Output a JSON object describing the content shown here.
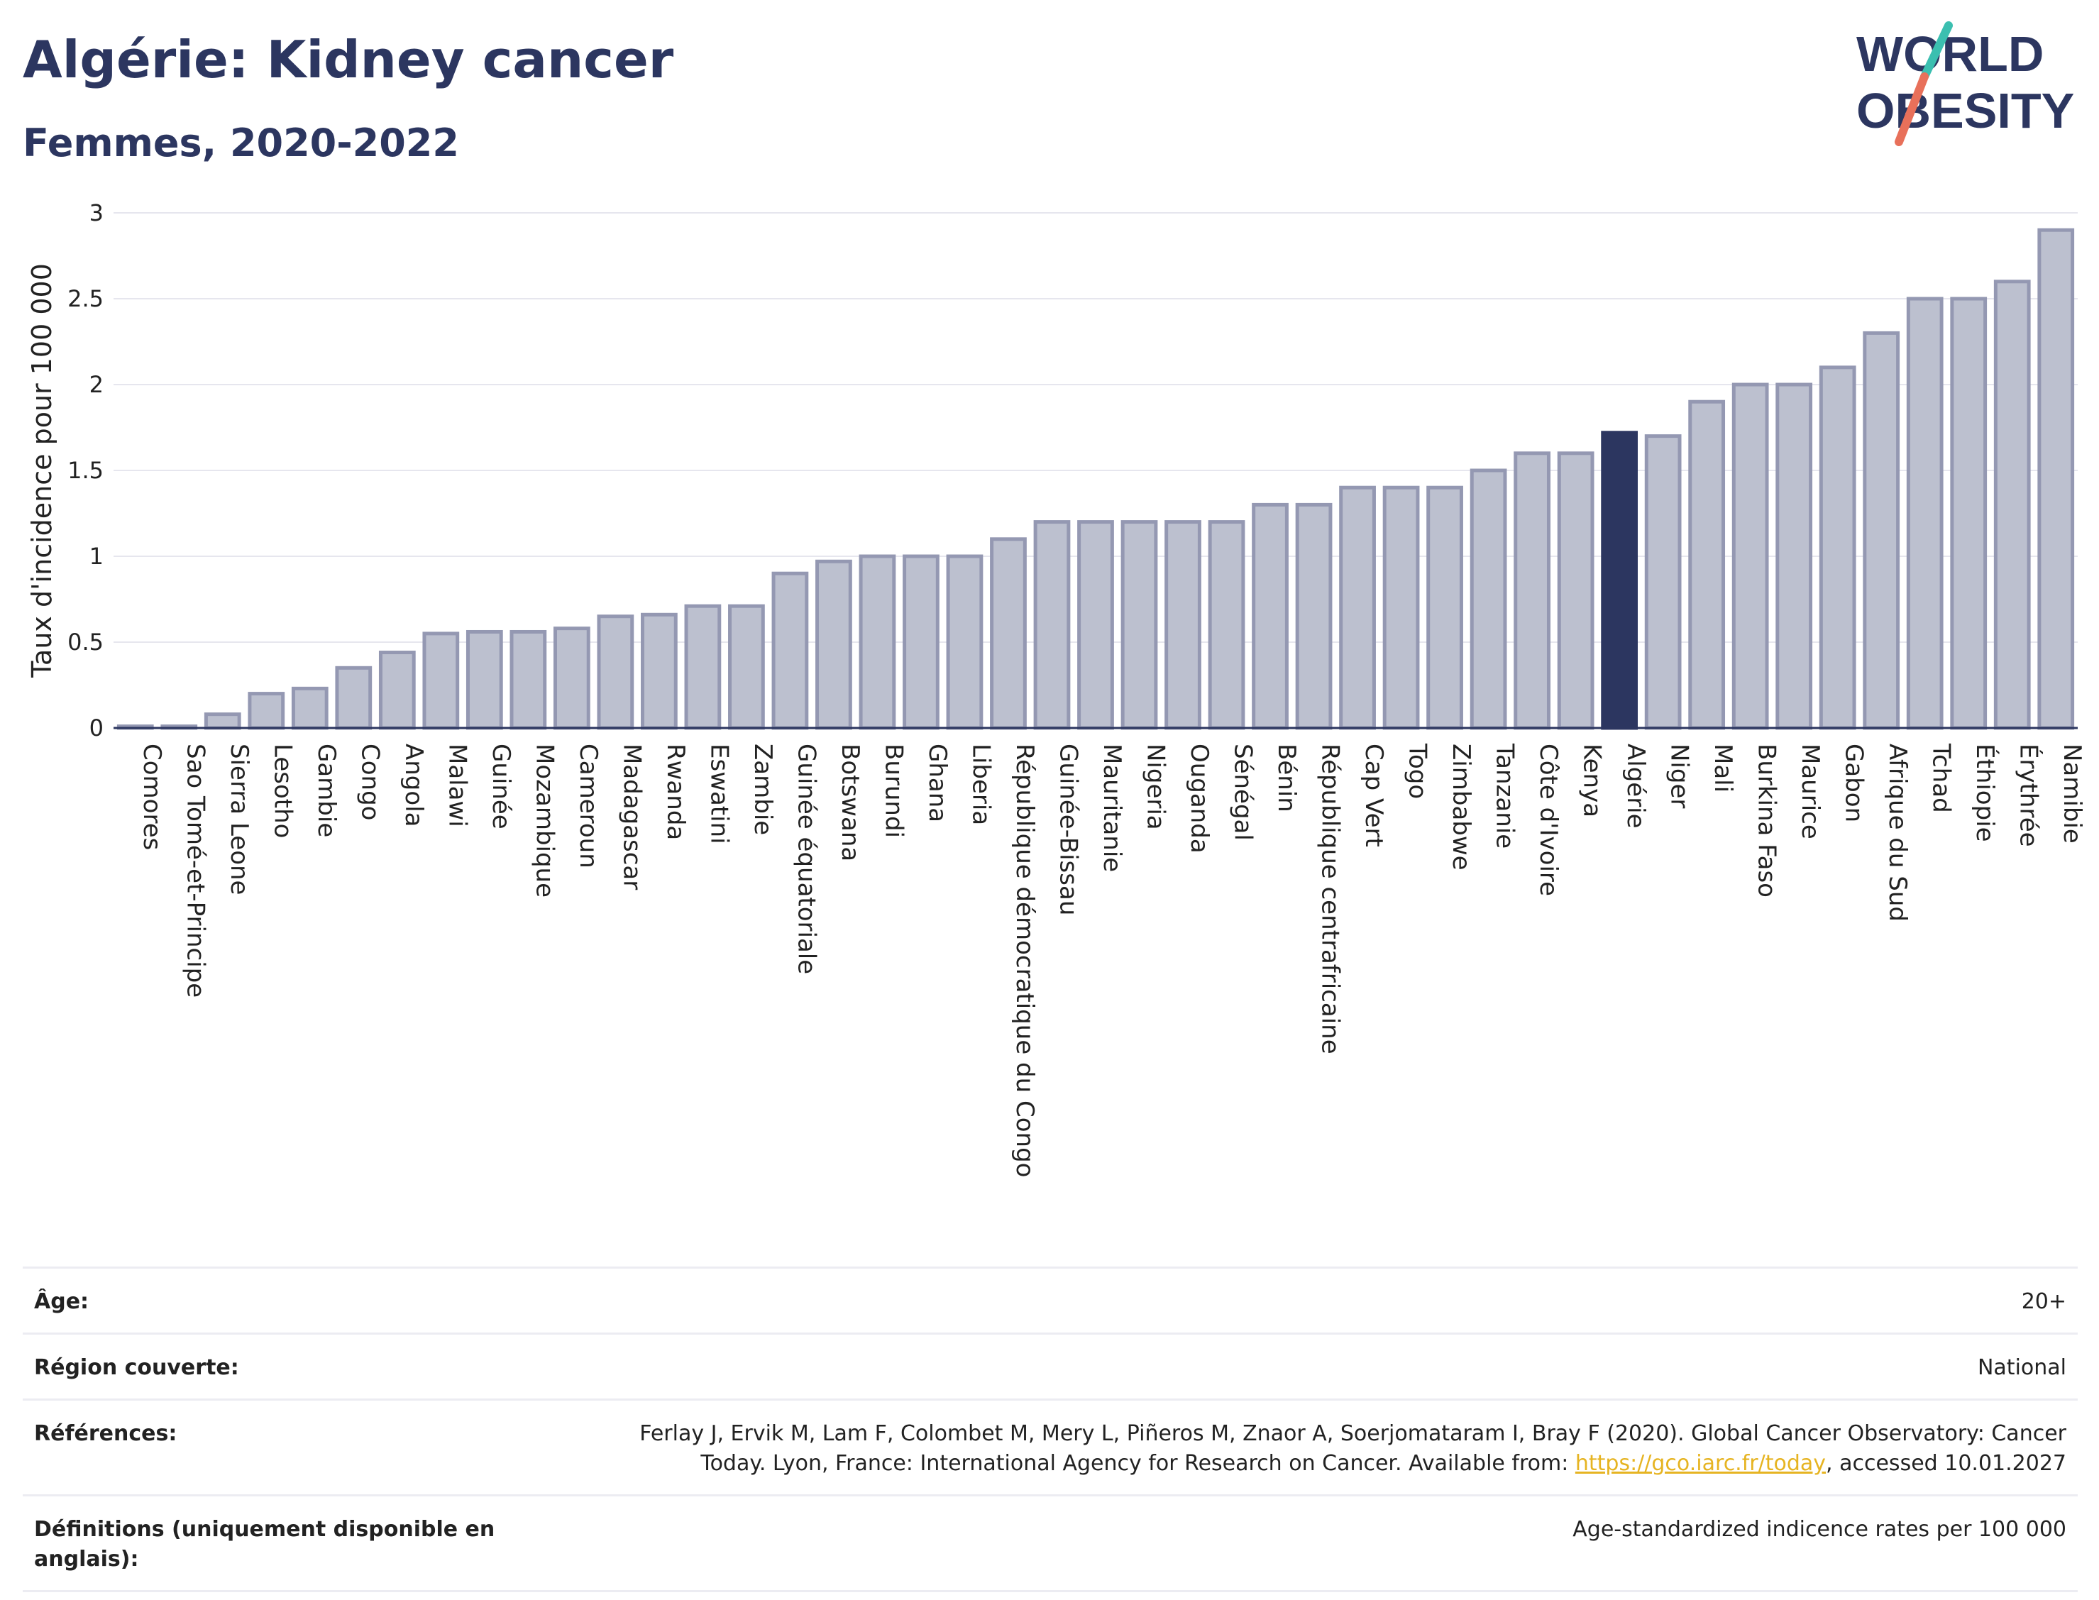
{
  "header": {
    "title": "Algérie: Kidney cancer",
    "subtitle": "Femmes, 2020-2022"
  },
  "logo": {
    "line1": "WORLD",
    "line2": "OBESITY",
    "colors": {
      "text": "#2c3660",
      "slash_top": "#3bbfb0",
      "slash_bottom": "#e8705a"
    }
  },
  "colors": {
    "bar": "#bcc0cf",
    "bar_stroke": "#9498b2",
    "highlight": "#2c3660",
    "grid": "#e6e6ee",
    "axis": "#2c3660"
  },
  "chart_data": {
    "type": "bar",
    "ylabel": "Taux d'incidence pour 100 000",
    "ylim": [
      0,
      3
    ],
    "yticks": [
      "0",
      "0.5",
      "1",
      "1.5",
      "2",
      "2.5",
      "3"
    ],
    "highlight": "Algérie",
    "categories": [
      "Comores",
      "Sao Tomé-et-Principe",
      "Sierra Leone",
      "Lesotho",
      "Gambie",
      "Congo",
      "Angola",
      "Malawi",
      "Guinée",
      "Mozambique",
      "Cameroun",
      "Madagascar",
      "Rwanda",
      "Eswatini",
      "Zambie",
      "Guinée équatoriale",
      "Botswana",
      "Burundi",
      "Ghana",
      "Liberia",
      "République démocratique du Congo",
      "Guinée-Bissau",
      "Mauritanie",
      "Nigeria",
      "Ouganda",
      "Sénégal",
      "Bénin",
      "République centrafricaine",
      "Cap Vert",
      "Togo",
      "Zimbabwe",
      "Tanzanie",
      "Côte d'Ivoire",
      "Kenya",
      "Algérie",
      "Niger",
      "Mali",
      "Burkina Faso",
      "Maurice",
      "Gabon",
      "Afrique du Sud",
      "Tchad",
      "Éthiopie",
      "Érythrée",
      "Namibie"
    ],
    "values": [
      0.01,
      0.01,
      0.08,
      0.2,
      0.23,
      0.35,
      0.44,
      0.55,
      0.56,
      0.56,
      0.58,
      0.65,
      0.66,
      0.71,
      0.71,
      0.9,
      0.97,
      1.0,
      1.0,
      1.0,
      1.1,
      1.2,
      1.2,
      1.2,
      1.2,
      1.2,
      1.3,
      1.3,
      1.4,
      1.4,
      1.4,
      1.5,
      1.6,
      1.6,
      1.72,
      1.7,
      1.9,
      2.0,
      2.0,
      2.1,
      2.3,
      2.5,
      2.5,
      2.6,
      2.9
    ]
  },
  "info": {
    "rows": [
      {
        "label": "Âge:",
        "value": "20+"
      },
      {
        "label": "Région couverte:",
        "value": "National"
      },
      {
        "label": "Références:",
        "value_before": "Ferlay J, Ervik M, Lam F, Colombet M, Mery L, Piñeros M, Znaor A, Soerjomataram I, Bray F (2020). Global Cancer Observatory: Cancer Today. Lyon, France: International Agency for Research on Cancer. Available from: ",
        "link": "https://gco.iarc.fr/today",
        "value_after": ", accessed 10.01.2027"
      },
      {
        "label": "Définitions (uniquement disponible en anglais):",
        "value": "Age-standardized indicence rates per 100 000"
      }
    ]
  }
}
